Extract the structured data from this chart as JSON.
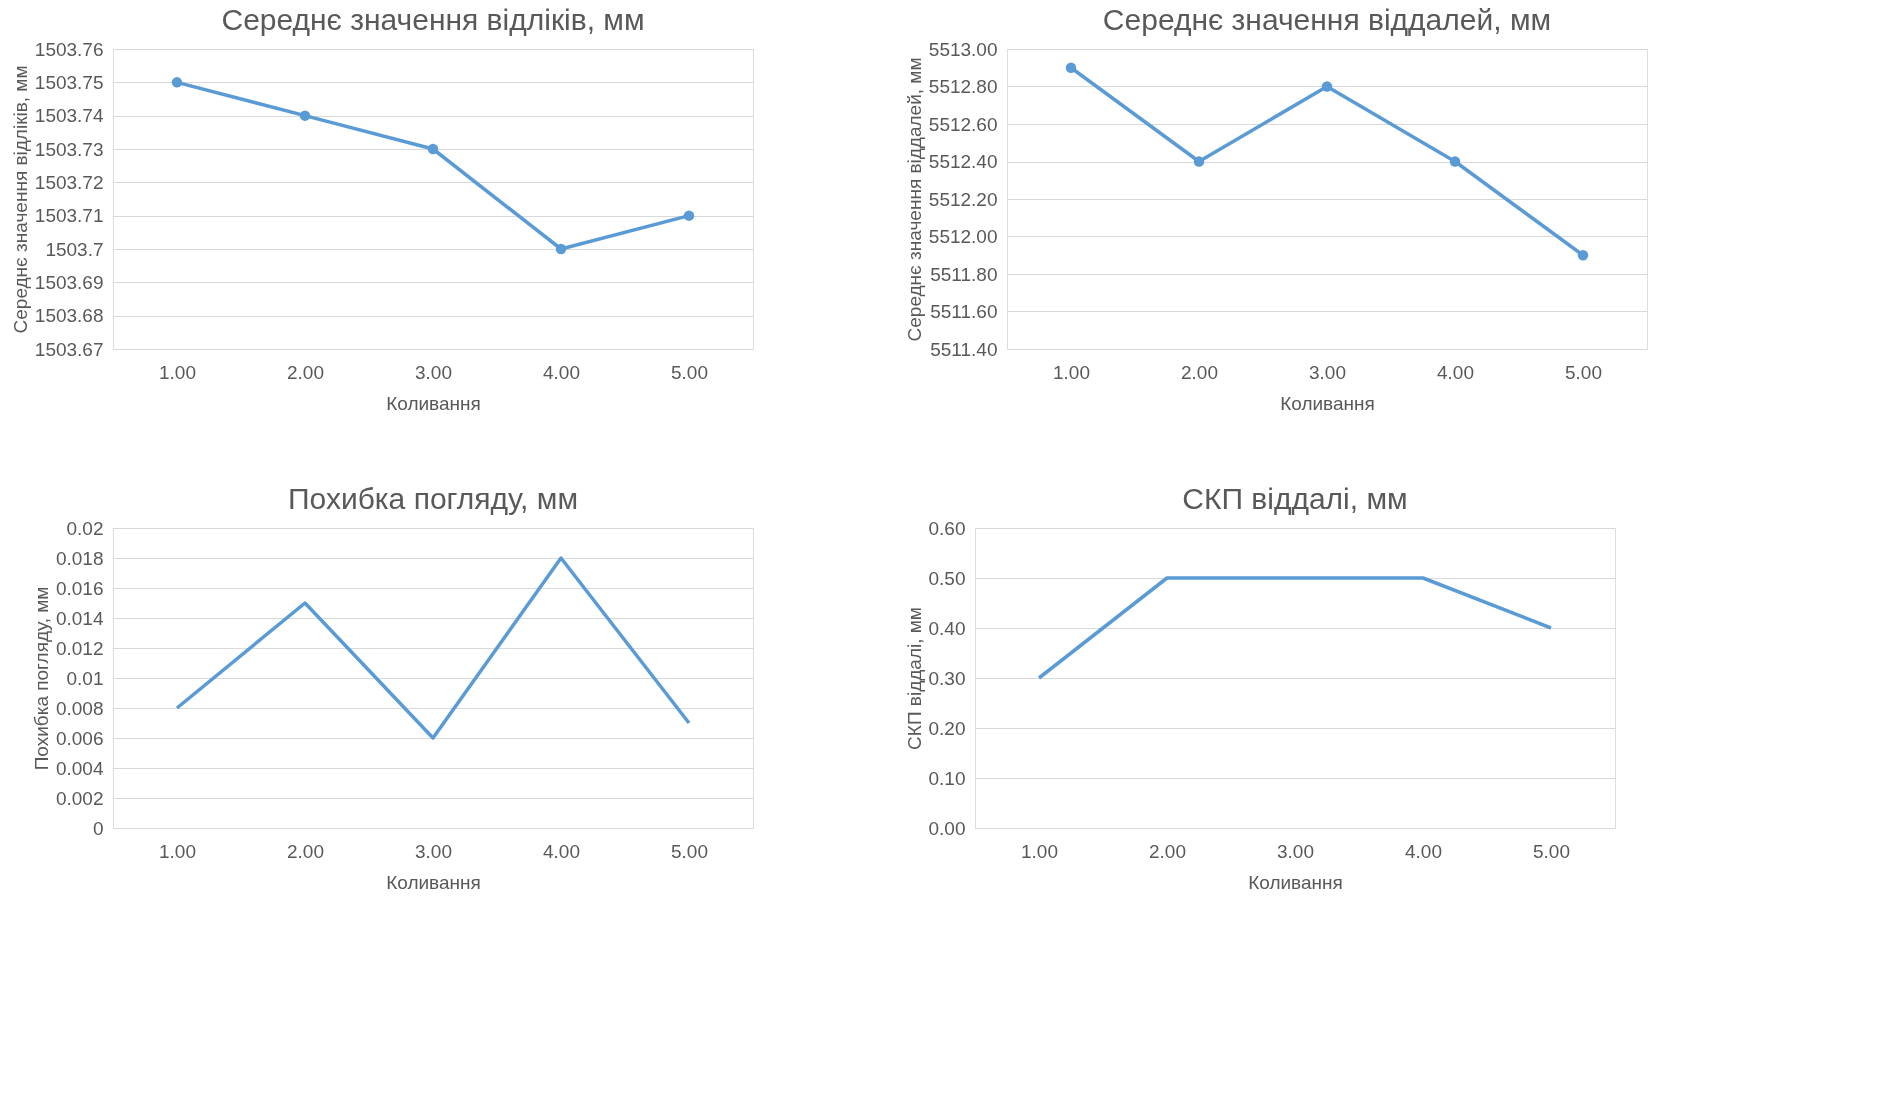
{
  "chart_data": [
    {
      "type": "line",
      "title": "Середнє значення відліків, мм",
      "xlabel": "Коливання",
      "ylabel": "Середнє значення відліків, мм",
      "categories": [
        "1.00",
        "2.00",
        "3.00",
        "4.00",
        "5.00"
      ],
      "series": [
        {
          "color": "#5b9bd5",
          "values": [
            1503.75,
            1503.74,
            1503.73,
            1503.7,
            1503.71
          ]
        }
      ],
      "ylim": [
        1503.67,
        1503.76
      ],
      "yticks": [
        1503.67,
        1503.68,
        1503.69,
        1503.7,
        1503.71,
        1503.72,
        1503.73,
        1503.74,
        1503.75,
        1503.76
      ],
      "grid": "y",
      "marker": "circle",
      "line_style": "solid"
    },
    {
      "type": "line",
      "title": "Середнє значення віддалей, мм",
      "xlabel": "Коливання",
      "ylabel": "Середнє значення віддалей, мм",
      "categories": [
        "1.00",
        "2.00",
        "3.00",
        "4.00",
        "5.00"
      ],
      "series": [
        {
          "color": "#5b9bd5",
          "values": [
            5512.9,
            5512.4,
            5512.8,
            5512.4,
            5511.9
          ]
        }
      ],
      "ylim": [
        5511.4,
        5513.0
      ],
      "yticks": [
        {
          "value": 5511.4,
          "label": "5511.40"
        },
        {
          "value": 5511.6,
          "label": "5511.60"
        },
        {
          "value": 5511.8,
          "label": "5511.80"
        },
        {
          "value": 5512.0,
          "label": "5512.00"
        },
        {
          "value": 5512.2,
          "label": "5512.20"
        },
        {
          "value": 5512.4,
          "label": "5512.40"
        },
        {
          "value": 5512.6,
          "label": "5512.60"
        },
        {
          "value": 5512.8,
          "label": "5512.80"
        },
        {
          "value": 5513.0,
          "label": "5513.00"
        }
      ],
      "grid": "y",
      "marker": "circle",
      "line_style": "solid"
    },
    {
      "type": "line",
      "title": "Похибка погляду, мм",
      "xlabel": "Коливання",
      "ylabel": "Похибка погляду, мм",
      "categories": [
        "1.00",
        "2.00",
        "3.00",
        "4.00",
        "5.00"
      ],
      "series": [
        {
          "color": "#5b9bd5",
          "values": [
            0.008,
            0.015,
            0.006,
            0.018,
            0.007
          ]
        }
      ],
      "ylim": [
        0,
        0.02
      ],
      "yticks": [
        0,
        0.002,
        0.004,
        0.006,
        0.008,
        0.01,
        0.012,
        0.014,
        0.016,
        0.018,
        0.02
      ],
      "grid": "y",
      "line_style": "solid"
    },
    {
      "type": "line",
      "title": "СКП віддалі, мм",
      "xlabel": "Коливання",
      "ylabel": "СКП віддалі, мм",
      "categories": [
        "1.00",
        "2.00",
        "3.00",
        "4.00",
        "5.00"
      ],
      "series": [
        {
          "color": "#5b9bd5",
          "values": [
            0.3,
            0.5,
            0.5,
            0.5,
            0.4
          ]
        }
      ],
      "ylim": [
        0,
        0.6
      ],
      "yticks": [
        {
          "value": 0,
          "label": "0.00"
        },
        {
          "value": 0.1,
          "label": "0.10"
        },
        {
          "value": 0.2,
          "label": "0.20"
        },
        {
          "value": 0.3,
          "label": "0.30"
        },
        {
          "value": 0.4,
          "label": "0.40"
        },
        {
          "value": 0.5,
          "label": "0.50"
        },
        {
          "value": 0.6,
          "label": "0.60"
        }
      ],
      "grid": "y",
      "line_style": "solid"
    }
  ]
}
